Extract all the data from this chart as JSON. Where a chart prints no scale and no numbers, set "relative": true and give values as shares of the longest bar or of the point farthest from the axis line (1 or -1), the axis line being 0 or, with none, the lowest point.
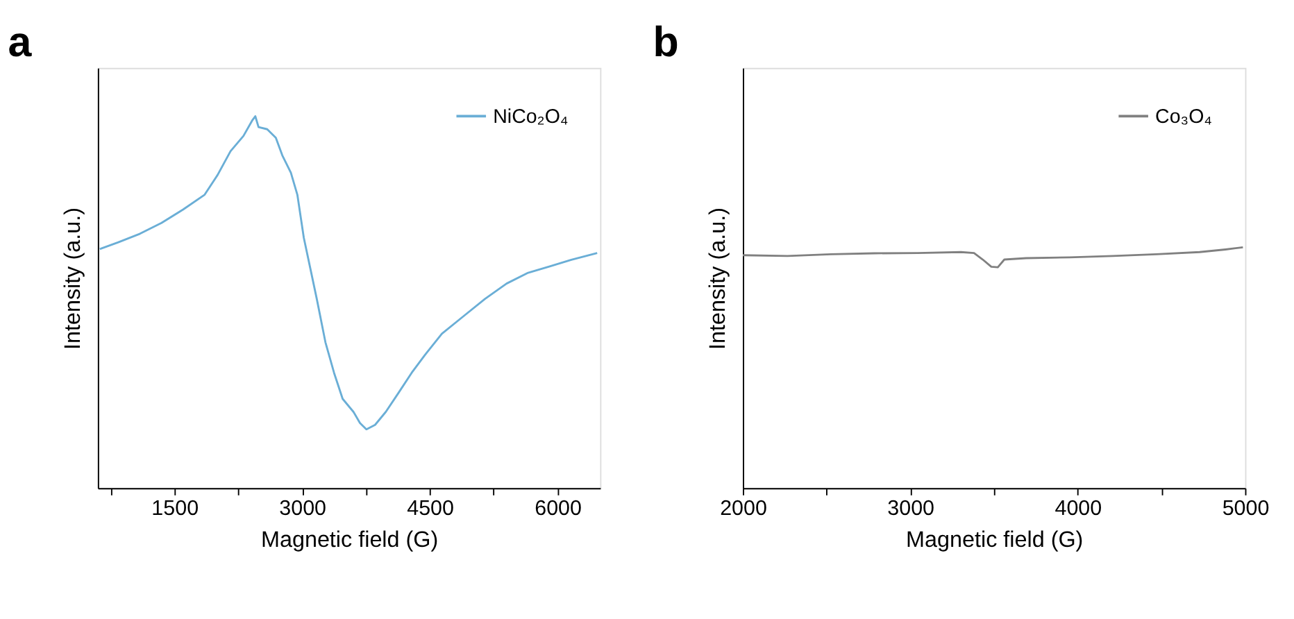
{
  "chart_data": [
    {
      "type": "line",
      "title": "a",
      "xlabel": "Magnetic field (G)",
      "ylabel": "Intensity (a.u.)",
      "relative": true,
      "legend": "top right",
      "tick_labels": "x",
      "grid": false,
      "xlim": [
        600,
        6500
      ],
      "xticks": [
        {
          "value": 750,
          "label": null
        },
        1500,
        {
          "value": 2250,
          "label": null
        },
        3000,
        {
          "value": 3750,
          "label": null
        },
        4500,
        {
          "value": 5250,
          "label": null
        },
        6000
      ],
      "x": [
        623,
        841,
        1095,
        1348,
        1601,
        1855,
        2007,
        2159,
        2311,
        2412,
        2450,
        2488,
        2590,
        2691,
        2767,
        2868,
        2944,
        3020,
        3096,
        3172,
        3274,
        3375,
        3476,
        3603,
        3679,
        3755,
        3857,
        3983,
        4135,
        4287,
        4439,
        4642,
        4895,
        5149,
        5402,
        5655,
        5909,
        6162,
        6466
      ],
      "series": [
        {
          "name": "NiCo₂O₄",
          "color": "#6aaed6",
          "values": [
            0.643,
            0.661,
            0.684,
            0.713,
            0.749,
            0.789,
            0.842,
            0.906,
            0.947,
            0.988,
            1.0,
            0.971,
            0.965,
            0.942,
            0.895,
            0.848,
            0.789,
            0.673,
            0.591,
            0.509,
            0.392,
            0.31,
            0.24,
            0.205,
            0.175,
            0.158,
            0.17,
            0.205,
            0.257,
            0.31,
            0.357,
            0.415,
            0.462,
            0.509,
            0.55,
            0.579,
            0.596,
            0.614,
            0.632
          ]
        }
      ]
    },
    {
      "type": "line",
      "title": "b",
      "xlabel": "Magnetic field (G)",
      "ylabel": "Intensity (a.u.)",
      "relative": true,
      "legend": "top right",
      "tick_labels": "x",
      "grid": false,
      "xlim": [
        2000,
        5000
      ],
      "xticks": [
        2000,
        {
          "value": 2500,
          "label": null
        },
        3000,
        {
          "value": 3500,
          "label": null
        },
        4000,
        {
          "value": 4500,
          "label": null
        },
        5000
      ],
      "x": [
        2000,
        2267,
        2526,
        2785,
        3044,
        3303,
        3381,
        3433,
        3484,
        3523,
        3562,
        3692,
        3951,
        4210,
        4469,
        4728,
        4883,
        4987
      ],
      "series": [
        {
          "name": "Co₃O₄",
          "color": "#808080",
          "values": [
            0.967,
            0.964,
            0.971,
            0.975,
            0.976,
            0.98,
            0.976,
            0.949,
            0.919,
            0.917,
            0.949,
            0.955,
            0.958,
            0.964,
            0.971,
            0.98,
            0.991,
            1.0
          ]
        }
      ]
    }
  ]
}
